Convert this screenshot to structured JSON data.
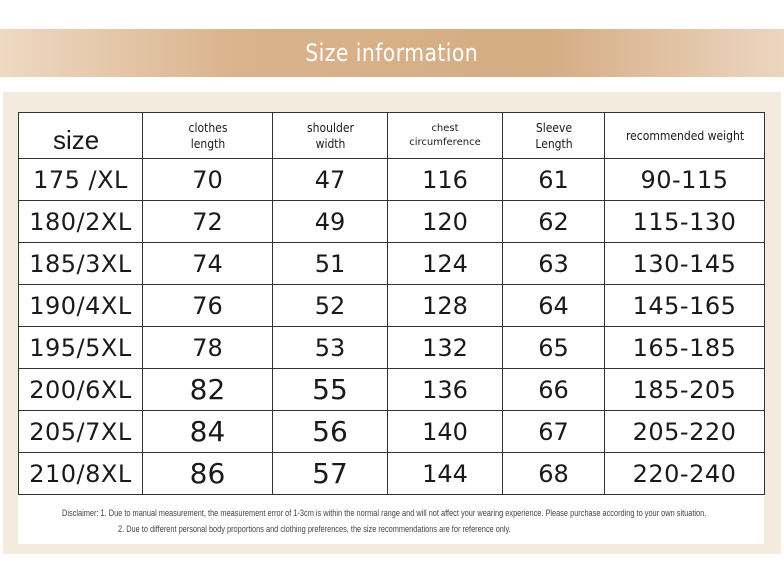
{
  "title": "Size information",
  "colors": {
    "banner": "#d9b38c",
    "frame": "#f4ebdf",
    "text": "#1a1a1a"
  },
  "table": {
    "headers": [
      {
        "lines": [
          "size"
        ]
      },
      {
        "lines": [
          "clothes",
          "length"
        ]
      },
      {
        "lines": [
          "shoulder",
          "width"
        ]
      },
      {
        "lines": [
          "chest",
          "circumference"
        ]
      },
      {
        "lines": [
          "Sleeve",
          "Length"
        ]
      },
      {
        "lines": [
          "recommended weight"
        ]
      }
    ],
    "rows": [
      [
        "175 /XL",
        "70",
        "47",
        "116",
        "61",
        "90-115"
      ],
      [
        "180/2XL",
        "72",
        "49",
        "120",
        "62",
        "115-130"
      ],
      [
        "185/3XL",
        "74",
        "51",
        "124",
        "63",
        "130-145"
      ],
      [
        "190/4XL",
        "76",
        "52",
        "128",
        "64",
        "145-165"
      ],
      [
        "195/5XL",
        "78",
        "53",
        "132",
        "65",
        "165-185"
      ],
      [
        "200/6XL",
        "82",
        "55",
        "136",
        "66",
        "185-205"
      ],
      [
        "205/7XL",
        "84",
        "56",
        "140",
        "67",
        "205-220"
      ],
      [
        "210/8XL",
        "86",
        "57",
        "144",
        "68",
        "220-240"
      ]
    ]
  },
  "disclaimer": {
    "line1": "Disclaimer: 1. Due to manual measurement, the measurement error of 1-3cm is within the normal range and will not affect your wearing experience. Please purchase according to your own situation.",
    "line2": "2. Due to different personal body proportions and clothing preferences, the size recommendations are for reference only."
  }
}
